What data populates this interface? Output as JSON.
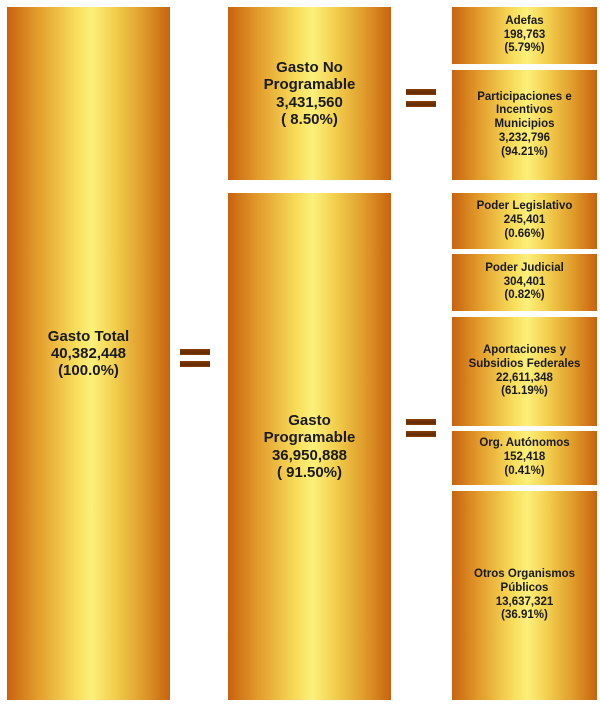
{
  "total": {
    "title": "Gasto Total",
    "value": "40,382,448",
    "pct": "(100.0%)"
  },
  "no_programable": {
    "title_line1": "Gasto No",
    "title_line2": "Programable",
    "value": "3,431,560",
    "pct": "( 8.50%)"
  },
  "programable": {
    "title_line1": "Gasto",
    "title_line2": "Programable",
    "value": "36,950,888",
    "pct": "( 91.50%)"
  },
  "no_prog_items": [
    {
      "lines": [
        "Adefas"
      ],
      "value": "198,763",
      "pct": "(5.79%)"
    },
    {
      "lines": [
        "Participaciones e",
        "Incentivos",
        "Municipios"
      ],
      "value": "3,232,796",
      "pct": "(94.21%)"
    }
  ],
  "prog_items": [
    {
      "lines": [
        "Poder Legislativo"
      ],
      "value": "245,401",
      "pct": "(0.66%)"
    },
    {
      "lines": [
        "Poder Judicial"
      ],
      "value": "304,401",
      "pct": "(0.82%)"
    },
    {
      "lines": [
        "Aportaciones y",
        "Subsidios Federales"
      ],
      "value": "22,611,348",
      "pct": "(61.19%)"
    },
    {
      "lines": [
        "Org. Autónomos"
      ],
      "value": "152,418",
      "pct": "(0.41%)"
    },
    {
      "lines": [
        "Otros Organismos",
        "Públicos"
      ],
      "value": "13,637,321",
      "pct": "(36.91%)"
    }
  ],
  "colors": {
    "gold_light": "#fbf07a",
    "gold_dark": "#c8620f",
    "equals_bar": "#6b2f06"
  },
  "icons": {
    "equals": "equals-icon"
  }
}
